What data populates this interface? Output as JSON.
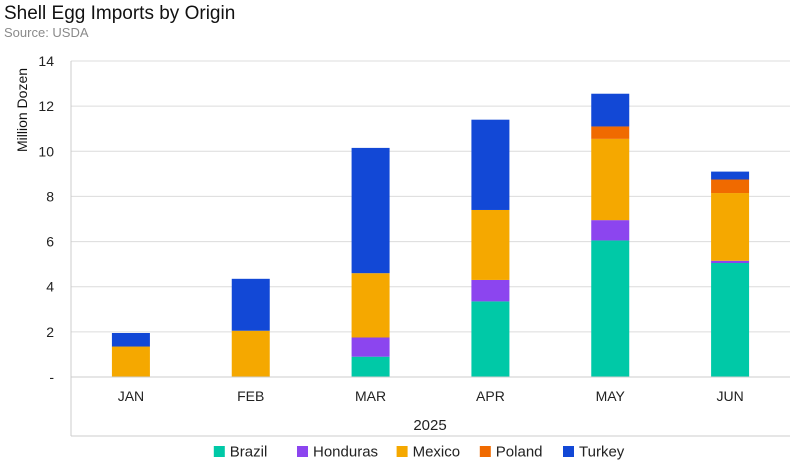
{
  "header": {
    "title": "Shell Egg Imports by Origin",
    "subtitle": "Source: USDA"
  },
  "chart_data": {
    "type": "bar",
    "stacked": true,
    "categories": [
      "JAN",
      "FEB",
      "MAR",
      "APR",
      "MAY",
      "JUN"
    ],
    "series": [
      {
        "name": "Brazil",
        "color": "#00c9a7",
        "values": [
          0,
          0,
          0.9,
          3.35,
          6.05,
          5.05
        ]
      },
      {
        "name": "Honduras",
        "color": "#8c45ef",
        "values": [
          0,
          0,
          0.85,
          0.95,
          0.9,
          0.1
        ]
      },
      {
        "name": "Mexico",
        "color": "#f5a800",
        "values": [
          1.35,
          2.05,
          2.85,
          3.1,
          3.6,
          3.0
        ]
      },
      {
        "name": "Poland",
        "color": "#f06a00",
        "values": [
          0,
          0,
          0,
          0,
          0.55,
          0.6
        ]
      },
      {
        "name": "Turkey",
        "color": "#1248d6",
        "values": [
          0.6,
          2.3,
          5.55,
          4.0,
          1.45,
          0.35
        ]
      }
    ],
    "xlabel": "2025",
    "ylabel": "Million Dozen",
    "ylim": [
      0,
      14
    ],
    "yticks": [
      0,
      2,
      4,
      6,
      8,
      10,
      12,
      14
    ],
    "ytick_labels": [
      "-",
      "2",
      "4",
      "6",
      "8",
      "10",
      "12",
      "14"
    ],
    "grid": true,
    "legend": "bottom"
  }
}
